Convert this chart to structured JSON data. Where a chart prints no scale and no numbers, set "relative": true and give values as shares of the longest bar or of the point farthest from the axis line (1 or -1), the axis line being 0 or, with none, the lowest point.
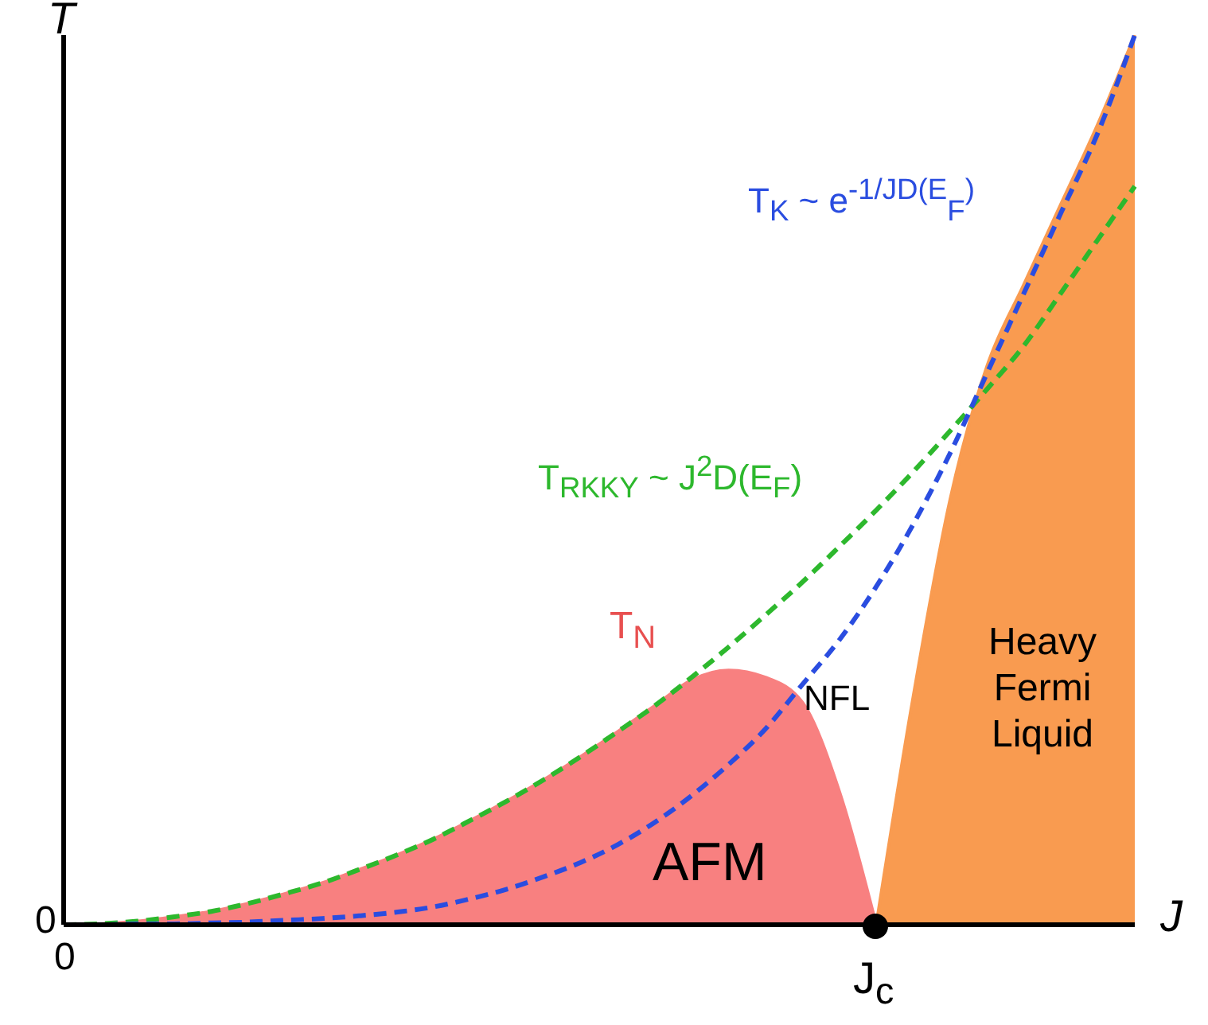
{
  "chart_data": {
    "type": "line",
    "relative": true,
    "xlabel": "J",
    "ylabel": "T",
    "categories": [
      null,
      null,
      null,
      null,
      null,
      null,
      null,
      null,
      null,
      null,
      null,
      null,
      null,
      null,
      null,
      null,
      null,
      null,
      null,
      null,
      null,
      null,
      null,
      null,
      null,
      null,
      null,
      null,
      null,
      null
    ],
    "series": [
      {
        "type": "area",
        "color": "#f88080",
        "values": [
          0,
          0.001,
          0.004,
          0.009,
          0.015,
          0.024,
          0.035,
          0.047,
          0.062,
          0.078,
          0.096,
          0.117,
          0.139,
          0.163,
          0.189,
          0.217,
          0.246,
          0.275,
          0.286,
          0.278,
          0.25,
          0.15,
          0,
          null,
          null,
          null,
          null,
          null,
          null,
          null
        ]
      },
      {
        "type": "area",
        "color": "#f99b50",
        "values": [
          null,
          null,
          null,
          null,
          null,
          null,
          null,
          null,
          null,
          null,
          null,
          null,
          null,
          null,
          null,
          null,
          null,
          null,
          null,
          null,
          null,
          null,
          0,
          0.256,
          0.478,
          0.628,
          0.72,
          0.81,
          0.9,
          1
        ]
      },
      {
        "color": "#2db82d",
        "line_style": "dashed",
        "values": [
          0,
          0.001,
          0.004,
          0.009,
          0.015,
          0.024,
          0.035,
          0.047,
          0.062,
          0.078,
          0.096,
          0.117,
          0.139,
          0.163,
          0.189,
          0.217,
          0.246,
          0.278,
          0.312,
          0.348,
          0.385,
          0.425,
          0.466,
          0.509,
          0.555,
          0.602,
          0.651,
          0.71,
          0.77,
          0.83
        ]
      },
      {
        "color": "#2a4de0",
        "line_style": "dashed",
        "values": [
          0,
          0,
          0.001,
          0.001,
          0.002,
          0.003,
          0.005,
          0.007,
          0.01,
          0.014,
          0.02,
          0.029,
          0.04,
          0.054,
          0.07,
          0.09,
          0.115,
          0.145,
          0.18,
          0.22,
          0.27,
          0.32,
          0.38,
          0.45,
          0.53,
          0.62,
          0.71,
          0.8,
          0.89,
          1
        ]
      }
    ],
    "annotations": [
      "0",
      "0",
      "J$_{c}$",
      "T$_{N}$",
      "NFL",
      "AFM",
      "Heavy Fermi Liquid",
      "T$_{K}$ ~ e$^{-1/JD(E}$$_{F}$$^{)}$",
      "T$_{RKKY}$ ~ J$^{2}$D(E$_{F}$)"
    ]
  }
}
